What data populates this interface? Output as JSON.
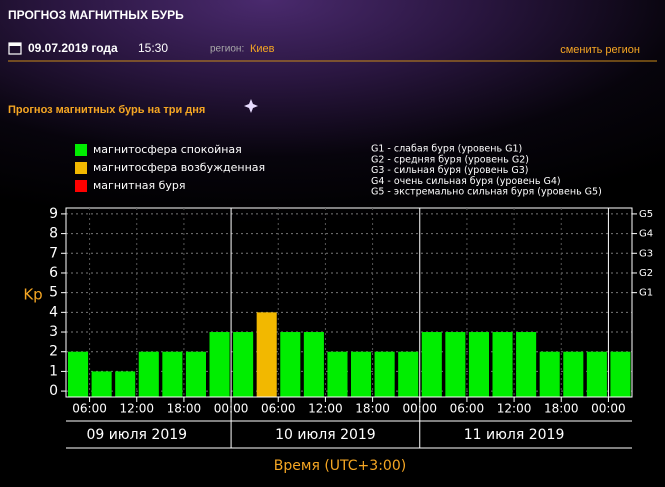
{
  "header": {
    "title": "ПРОГНОЗ МАГНИТНЫХ БУРЬ",
    "date": "09.07.2019 года",
    "time": "15:30",
    "region_label": "регион:",
    "region": "Киев",
    "change_region": "сменить регион"
  },
  "subtitle": "Прогноз магнитных бурь на три дня",
  "legend": [
    {
      "name": "магнитосфера спокойная",
      "color": "#00ee00"
    },
    {
      "name": "магнитосфера возбужденная",
      "color": "#f2b800"
    },
    {
      "name": "магнитная буря",
      "color": "#ff0000"
    }
  ],
  "g_legend": [
    "G1 - слабая буря (уровень G1)",
    "G2 - средняя буря (уровень G2)",
    "G3 - сильная буря (уровень G3)",
    "G4 - очень сильная буря (уровень G4)",
    "G5 - экстремально сильная буря (уровень G5)"
  ],
  "chart_data": {
    "type": "bar",
    "ylabel": "Kp",
    "xlabel": "Время (UTC+3:00)",
    "categories": [
      null,
      null,
      null,
      null,
      null,
      null,
      null,
      null,
      null,
      null,
      null,
      null,
      null,
      null,
      null,
      null,
      null,
      null,
      null,
      null,
      null,
      null,
      null,
      null
    ],
    "values": [
      2,
      1,
      1,
      2,
      2,
      2,
      3,
      3,
      4,
      3,
      3,
      2,
      2,
      2,
      2,
      3,
      3,
      3,
      3,
      3,
      2,
      2,
      2,
      2
    ],
    "colors": [
      "#00ee00",
      "#00ee00",
      "#00ee00",
      "#00ee00",
      "#00ee00",
      "#00ee00",
      "#00ee00",
      "#00ee00",
      "#f2b800",
      "#00ee00",
      "#00ee00",
      "#00ee00",
      "#00ee00",
      "#00ee00",
      "#00ee00",
      "#00ee00",
      "#00ee00",
      "#00ee00",
      "#00ee00",
      "#00ee00",
      "#00ee00",
      "#00ee00",
      "#00ee00",
      "#00ee00"
    ],
    "xtick_labels": [
      "06:00",
      "12:00",
      "18:00",
      "00:00",
      "06:00",
      "12:00",
      "18:00",
      "00:00",
      "06:00",
      "12:00",
      "18:00",
      "00:00"
    ],
    "days": [
      "09 июля 2019",
      "10 июля 2019",
      "11 июля 2019"
    ],
    "ylim": [
      -0.3,
      9.3
    ],
    "yticks": [
      0,
      1,
      2,
      3,
      4,
      5,
      6,
      7,
      8,
      9
    ],
    "y2lim": [
      -0.3,
      9.3
    ],
    "y2ticks": [
      {
        "value": 5,
        "label": "G1"
      },
      {
        "value": 6,
        "label": "G2"
      },
      {
        "value": 7,
        "label": "G3"
      },
      {
        "value": 8,
        "label": "G4"
      },
      {
        "value": 9,
        "label": "G5"
      }
    ],
    "grid": true
  }
}
